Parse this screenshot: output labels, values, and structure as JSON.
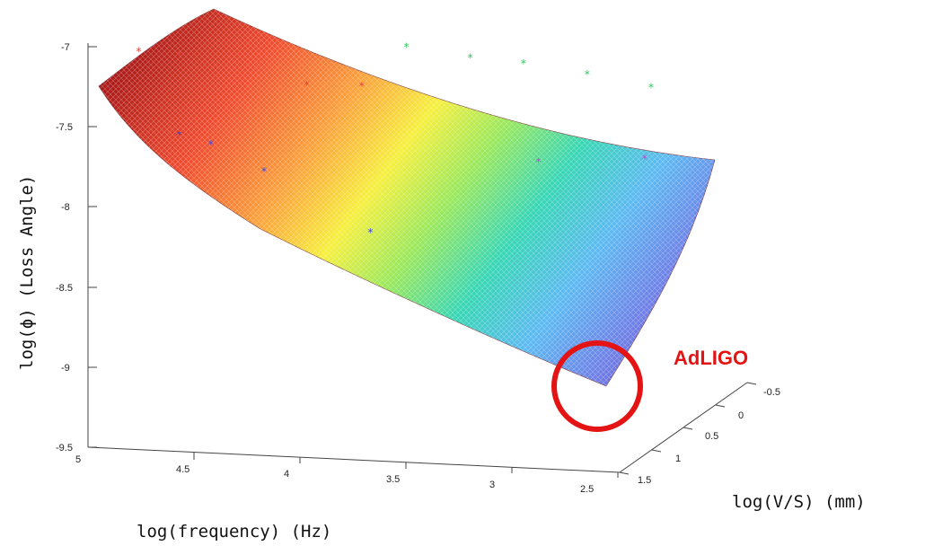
{
  "chart_data": {
    "type": "surface",
    "xlabel": "log(frequency) (Hz)",
    "ylabel": "log(V/S) (mm)",
    "zlabel": "log(ϕ) (Loss Angle)",
    "x_ticks": [
      "5",
      "4.5",
      "4",
      "3.5",
      "3",
      "2.5"
    ],
    "y_ticks": [
      "-0.5",
      "0",
      "0.5",
      "1",
      "1.5"
    ],
    "z_ticks": [
      "-7",
      "-7.5",
      "-8",
      "-8.5",
      "-9",
      "-9.5"
    ],
    "xlim": [
      2.5,
      5
    ],
    "ylim": [
      -0.5,
      1.5
    ],
    "zlim": [
      -9.5,
      -7
    ],
    "surface_corners": {
      "high_freq_low_vs": {
        "x": 5,
        "y": 1.5,
        "z": -7.25
      },
      "high_freq_high_vs": {
        "x": 5,
        "y": -0.5,
        "z": -6.95
      },
      "low_freq_low_vs": {
        "x": 2.5,
        "y": 1.5,
        "z": -9.12
      },
      "low_freq_high_vs": {
        "x": 2.5,
        "y": -0.5,
        "z": -7.7
      }
    },
    "colormap": "jet",
    "annotation": {
      "label": "AdLIGO",
      "color": "#e41414"
    },
    "series": [
      {
        "color": "#e8433a",
        "points": [
          {
            "x": 4.85,
            "y": 1.2,
            "z": -7.1
          },
          {
            "x": 4.75,
            "y": 0.9,
            "z": -7.2
          },
          {
            "x": 4.3,
            "y": 0.4,
            "z": -7.5
          },
          {
            "x": 4.1,
            "y": 0.2,
            "z": -7.55
          }
        ]
      },
      {
        "color": "#3c48e0",
        "points": [
          {
            "x": 4.6,
            "y": 1.4,
            "z": -7.55
          },
          {
            "x": 4.45,
            "y": 1.4,
            "z": -7.6
          },
          {
            "x": 4.2,
            "y": 1.4,
            "z": -7.75
          },
          {
            "x": 3.7,
            "y": 1.4,
            "z": -8.1
          }
        ]
      },
      {
        "color": "#2ec95a",
        "points": [
          {
            "x": 4.1,
            "y": -0.5,
            "z": -7.5
          },
          {
            "x": 3.8,
            "y": -0.5,
            "z": -7.55
          },
          {
            "x": 3.55,
            "y": -0.5,
            "z": -7.57
          },
          {
            "x": 3.25,
            "y": -0.5,
            "z": -7.62
          },
          {
            "x": 2.95,
            "y": -0.5,
            "z": -7.68
          }
        ]
      },
      {
        "color": "#d43ad6",
        "points": [
          {
            "x": 3.3,
            "y": 0.1,
            "z": -8.0
          },
          {
            "x": 2.95,
            "y": -0.4,
            "z": -8.1
          }
        ]
      }
    ]
  }
}
